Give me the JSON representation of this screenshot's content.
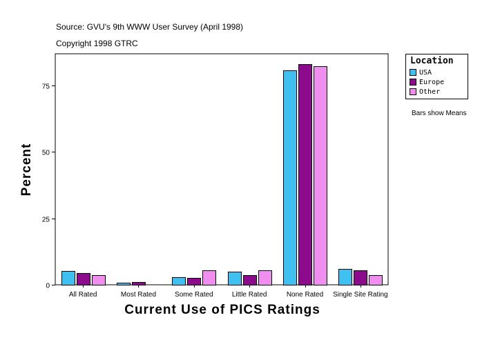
{
  "chart_data": {
    "type": "bar",
    "source": "Source: GVU's 9th WWW User Survey (April 1998)",
    "copyright": "Copyright 1998 GTRC",
    "xlabel": "Current Use of PICS Ratings",
    "ylabel": "Percent",
    "ylim": [
      0,
      87
    ],
    "yticks": [
      0,
      25,
      50,
      75
    ],
    "grid": false,
    "legend_title": "Location",
    "legend_position": "top-right",
    "note": "Bars show Means",
    "categories": [
      "All Rated",
      "Most Rated",
      "Some Rated",
      "Little Rated",
      "None Rated",
      "Single Site Rating"
    ],
    "series": [
      {
        "name": "USA",
        "color": "#40c0f0",
        "values": [
          5.2,
          0.8,
          2.8,
          5.0,
          80.8,
          5.9
        ]
      },
      {
        "name": "Europe",
        "color": "#8c0a8c",
        "values": [
          4.5,
          1.1,
          2.7,
          3.6,
          83.1,
          5.5
        ]
      },
      {
        "name": "Other",
        "color": "#f08ef0",
        "values": [
          3.6,
          0.0,
          5.4,
          5.4,
          82.3,
          3.6
        ]
      }
    ]
  }
}
